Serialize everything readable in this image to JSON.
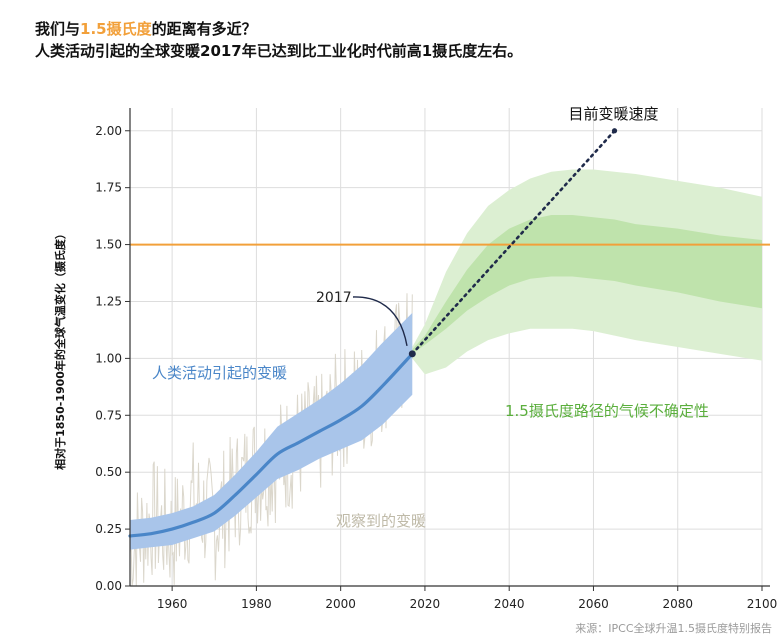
{
  "title": {
    "line1_prefix": "我们与",
    "line1_highlight": "1.5摄氏度",
    "line1_suffix": "的距离有多近？",
    "line2": "人类活动引起的全球变暖2017年已达到比工业化时代前高1摄氏度左右。"
  },
  "colors": {
    "highlight": "#f2a03a",
    "threshold_line": "#f2a03a",
    "human_warming_line": "#4a86c8",
    "human_warming_band": "#a9c5ea",
    "pathway_band_outer": "#dcefd2",
    "pathway_band_inner": "#bfe3ac",
    "pathway_label": "#5aae3c",
    "observed": "#d7d3c6",
    "current_rate": "#1f2a4a",
    "grid": "#dddddd"
  },
  "source": "来源：IPCC全球升温1.5摄氏度特别报告",
  "chart_data": {
    "type": "line",
    "ylabel": "相对于1850-1900年的全球气温变化（摄氏度）",
    "xlim": [
      1950,
      2100
    ],
    "ylim": [
      0.0,
      2.1
    ],
    "x_ticks": [
      1960,
      1980,
      2000,
      2020,
      2040,
      2060,
      2080,
      2100
    ],
    "y_ticks": [
      "0.00",
      "0.25",
      "0.50",
      "0.75",
      "1.00",
      "1.25",
      "1.50",
      "1.75",
      "2.00"
    ],
    "threshold": {
      "y": 1.5
    },
    "series": [
      {
        "name": "人类活动引起的变暖",
        "x": [
          1950,
          1955,
          1960,
          1965,
          1970,
          1975,
          1980,
          1985,
          1990,
          1995,
          2000,
          2005,
          2010,
          2017
        ],
        "y": [
          0.22,
          0.23,
          0.25,
          0.28,
          0.32,
          0.4,
          0.49,
          0.58,
          0.63,
          0.68,
          0.73,
          0.79,
          0.88,
          1.02
        ],
        "band_upper": [
          0.29,
          0.3,
          0.32,
          0.35,
          0.4,
          0.49,
          0.59,
          0.7,
          0.76,
          0.82,
          0.89,
          0.97,
          1.07,
          1.2
        ],
        "band_lower": [
          0.16,
          0.17,
          0.18,
          0.21,
          0.24,
          0.31,
          0.39,
          0.47,
          0.51,
          0.56,
          0.6,
          0.64,
          0.71,
          0.84
        ]
      },
      {
        "name": "观察到的变暖",
        "x": [
          1950,
          1955,
          1960,
          1965,
          1970,
          1975,
          1980,
          1985,
          1990,
          1995,
          2000,
          2005,
          2010,
          2017
        ],
        "y": [
          0.15,
          0.3,
          0.22,
          0.38,
          0.28,
          0.42,
          0.52,
          0.55,
          0.62,
          0.66,
          0.78,
          0.82,
          0.94,
          1.05
        ]
      },
      {
        "name": "目前变暖速度",
        "x": [
          2017,
          2065
        ],
        "y": [
          1.02,
          2.0
        ]
      },
      {
        "name": "1.5摄氏度路径的气候不确定性",
        "x": [
          2017,
          2020,
          2025,
          2030,
          2035,
          2040,
          2045,
          2050,
          2055,
          2060,
          2065,
          2070,
          2080,
          2090,
          2100
        ],
        "outer_upper": [
          1.05,
          1.15,
          1.38,
          1.55,
          1.67,
          1.74,
          1.79,
          1.82,
          1.83,
          1.83,
          1.82,
          1.81,
          1.78,
          1.75,
          1.71
        ],
        "inner_upper": [
          1.04,
          1.1,
          1.25,
          1.39,
          1.5,
          1.57,
          1.61,
          1.63,
          1.63,
          1.62,
          1.61,
          1.59,
          1.57,
          1.54,
          1.52
        ],
        "inner_lower": [
          1.02,
          1.06,
          1.13,
          1.21,
          1.27,
          1.32,
          1.35,
          1.36,
          1.36,
          1.35,
          1.34,
          1.32,
          1.29,
          1.25,
          1.22
        ],
        "outer_lower": [
          1.0,
          0.93,
          0.96,
          1.03,
          1.08,
          1.11,
          1.13,
          1.13,
          1.13,
          1.12,
          1.1,
          1.08,
          1.05,
          1.02,
          0.99
        ]
      }
    ],
    "annotations": [
      {
        "text": "2017",
        "x": 2017,
        "y": 1.02
      },
      {
        "text": "目前变暖速度",
        "x": 2065,
        "y": 2.0
      },
      {
        "text": "人类活动引起的变暖",
        "x": 1976,
        "y": 0.95
      },
      {
        "text": "观察到的变暖",
        "x": 2012,
        "y": 0.28
      },
      {
        "text": "1.5摄氏度路径的气候不确定性",
        "x": 2058,
        "y": 0.78
      }
    ]
  }
}
